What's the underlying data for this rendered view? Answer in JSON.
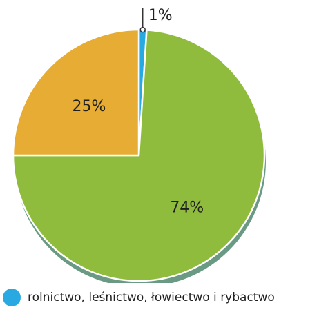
{
  "chart_data": {
    "type": "pie",
    "slices": [
      {
        "label": "rolnictwo, leśnictwo, łowiectwo i rybactwo",
        "value": 1,
        "display": "1%",
        "color": "#29a9e1"
      },
      {
        "label": "",
        "value": 74,
        "display": "74%",
        "color": "#8fbc3c"
      },
      {
        "label": "",
        "value": 25,
        "display": "25%",
        "color": "#e6ac33"
      }
    ],
    "shadow_color": "#6a9a84",
    "legend": {
      "position": "bottom-left",
      "entries": [
        {
          "label": "rolnictwo, leśnictwo, łowiectwo i rybactwo",
          "color": "#29a9e1"
        }
      ]
    }
  }
}
